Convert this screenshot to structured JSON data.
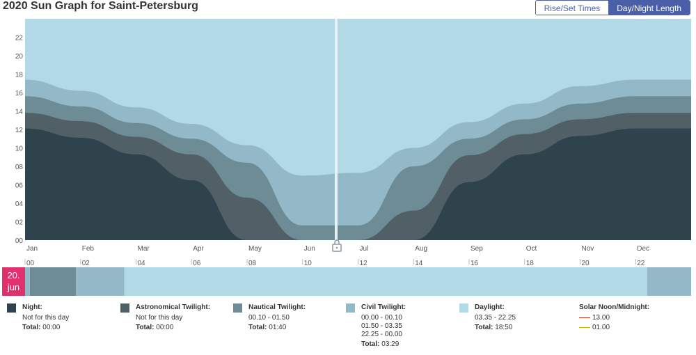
{
  "header": {
    "title": "2020 Sun Graph for Saint-Petersburg",
    "btn_rise": "Rise/Set Times",
    "btn_day": "Day/Night Length"
  },
  "colors": {
    "night": "#2f434c",
    "astro": "#515f66",
    "nautical": "#6e8c96",
    "civil": "#93b9c9",
    "daylight": "#b1d9e6",
    "badge": "#e0306e",
    "solar_noon": "#c0392b",
    "solar_midnight": "#c8b400"
  },
  "selected_day": {
    "day": "20.",
    "month": "jun"
  },
  "chart_data": {
    "type": "area",
    "title": "2020 Sun Graph for Saint-Petersburg",
    "y_ticks": [
      "00",
      "02",
      "04",
      "06",
      "08",
      "10",
      "12",
      "14",
      "16",
      "18",
      "20",
      "22"
    ],
    "ylim": [
      0,
      24
    ],
    "x_months": [
      "Jan",
      "Feb",
      "Mar",
      "Apr",
      "May",
      "Jun",
      "Jul",
      "Aug",
      "Sep",
      "Oct",
      "Nov",
      "Dec"
    ],
    "day_hours_ticks": [
      "00",
      "02",
      "04",
      "06",
      "08",
      "10",
      "12",
      "14",
      "16",
      "18",
      "20",
      "22"
    ],
    "series_hours_at_month_start": {
      "night": [
        12.1,
        11.1,
        9.3,
        6.5,
        0.0,
        0.0,
        0.0,
        0.0,
        6.3,
        9.3,
        11.3,
        12.1
      ],
      "astronomical_twilight": [
        13.8,
        12.9,
        11.2,
        9.3,
        4.6,
        0.0,
        0.0,
        3.2,
        9.2,
        11.5,
        13.1,
        13.8
      ],
      "nautical_twilight": [
        15.6,
        14.5,
        12.7,
        11.0,
        8.4,
        1.6,
        1.6,
        8.0,
        11.0,
        13.1,
        14.8,
        15.6
      ],
      "civil_twilight": [
        17.4,
        16.2,
        14.4,
        12.6,
        10.3,
        7.0,
        7.3,
        10.0,
        12.8,
        14.8,
        16.7,
        17.4
      ]
    },
    "selected_marker": "20 Jun"
  },
  "day_segments": [
    {
      "kind": "civil",
      "from": 0.0,
      "to": 0.17
    },
    {
      "kind": "nautical",
      "from": 0.17,
      "to": 1.83
    },
    {
      "kind": "civil",
      "from": 1.83,
      "to": 3.58
    },
    {
      "kind": "daylight",
      "from": 3.58,
      "to": 22.42
    },
    {
      "kind": "civil",
      "from": 22.42,
      "to": 24.0
    }
  ],
  "legend": {
    "night": {
      "label": "Night:",
      "value": "Not for this day",
      "total_label": "Total:",
      "total": "00:00"
    },
    "astro": {
      "label": "Astronomical Twilight:",
      "value": "Not for this day",
      "total_label": "Total:",
      "total": "00:00"
    },
    "nautical": {
      "label": "Nautical Twilight:",
      "value": "00.10 - 01.50",
      "total_label": "Total:",
      "total": "01:40"
    },
    "civil": {
      "label": "Civil Twilight:",
      "v1": "00.00 - 00.10",
      "v2": "01.50 - 03.35",
      "v3": "22.25 - 00.00",
      "total_label": "Total:",
      "total": "03:29"
    },
    "daylight": {
      "label": "Daylight:",
      "value": "03.35 - 22.25",
      "total_label": "Total:",
      "total": "18:50"
    },
    "solar": {
      "label": "Solar Noon/Midnight:",
      "noon": "13.00",
      "midnight": "01.00"
    }
  }
}
